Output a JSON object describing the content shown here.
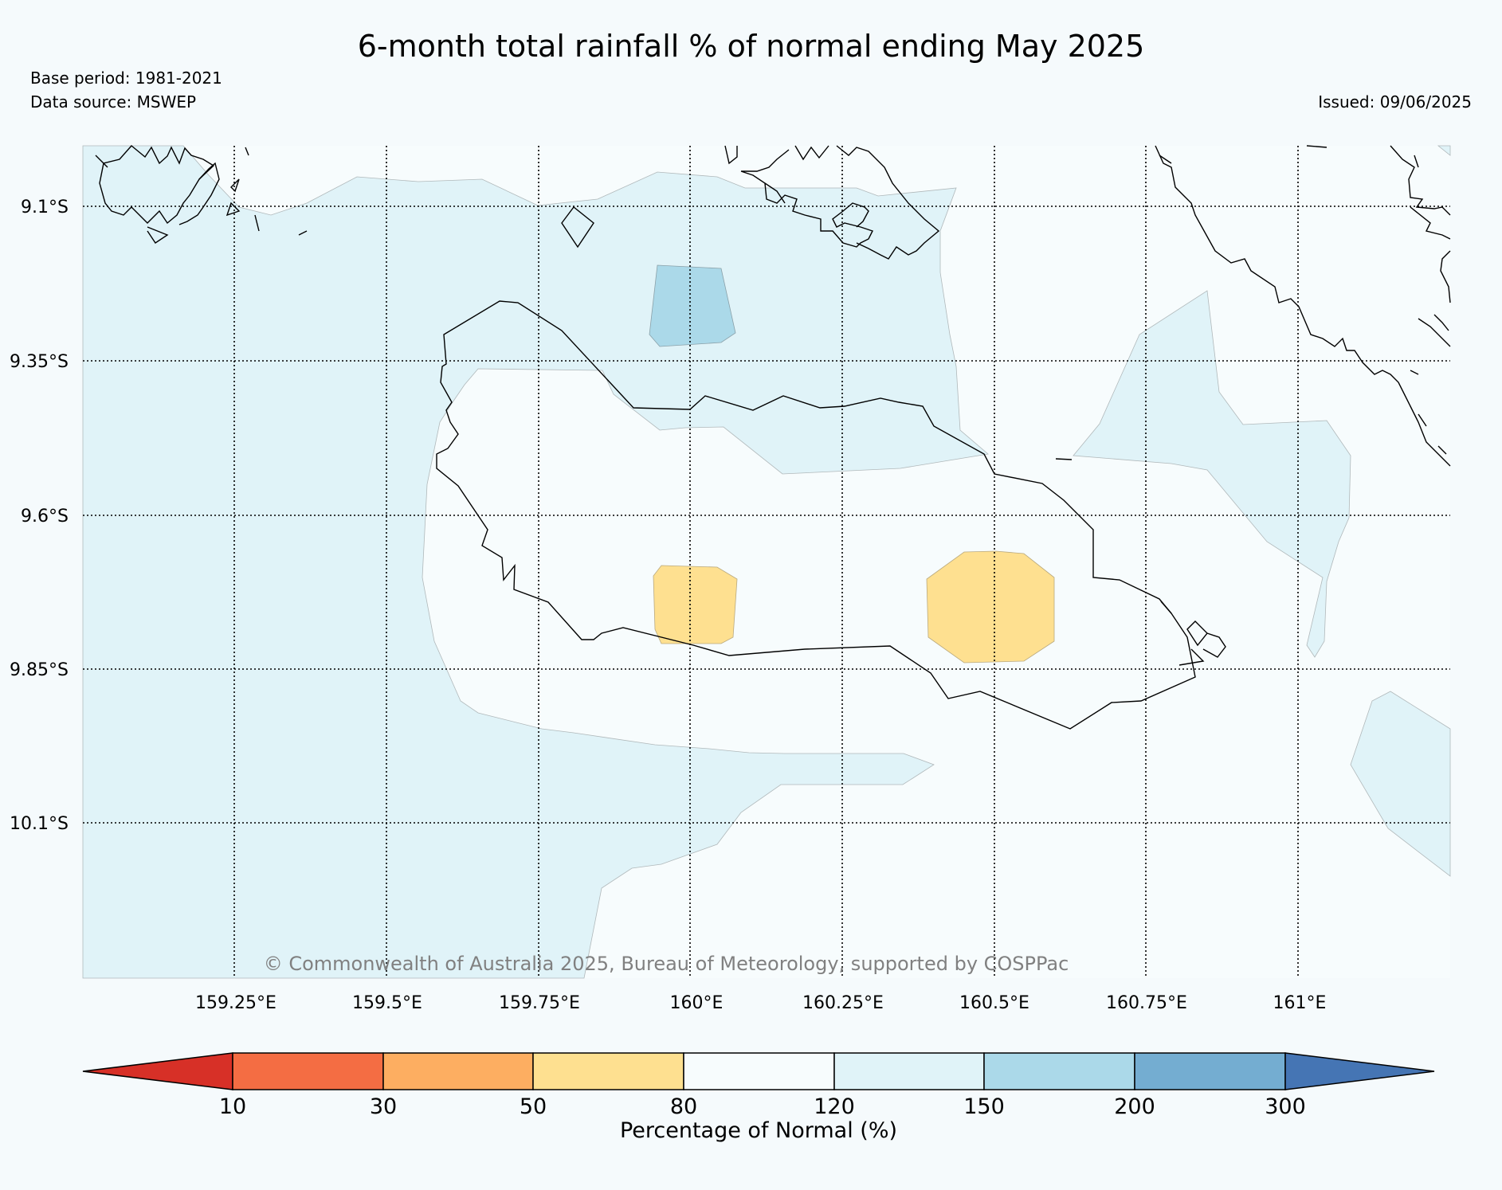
{
  "header": {
    "title": "6-month total rainfall % of normal ending May 2025",
    "base_period": "Base period: 1981-2021",
    "data_source": "Data source: MSWEP",
    "issued": "Issued: 09/06/2025"
  },
  "map": {
    "lat_labels": [
      "9.1°S",
      "9.35°S",
      "9.6°S",
      "9.85°S",
      "10.1°S"
    ],
    "lon_labels": [
      "159.25°E",
      "159.5°E",
      "159.75°E",
      "160°E",
      "160.25°E",
      "160.5°E",
      "160.75°E",
      "161°E"
    ],
    "copyright": "© Commonwealth of Australia 2025, Bureau of Meteorology, supported by COSPPac"
  },
  "colorbar": {
    "label": "Percentage of Normal (%)",
    "ticks": [
      "10",
      "30",
      "50",
      "80",
      "120",
      "150",
      "200",
      "300"
    ],
    "colors": {
      "lt10": "#d73027",
      "c10_30": "#f46d43",
      "c30_50": "#fdae61",
      "c50_80": "#fee090",
      "c80_120": "#f7fcfd",
      "c120_150": "#e0f3f8",
      "c150_200": "#abd9e9",
      "c200_300": "#74add1",
      "gt300": "#4575b4"
    }
  }
}
